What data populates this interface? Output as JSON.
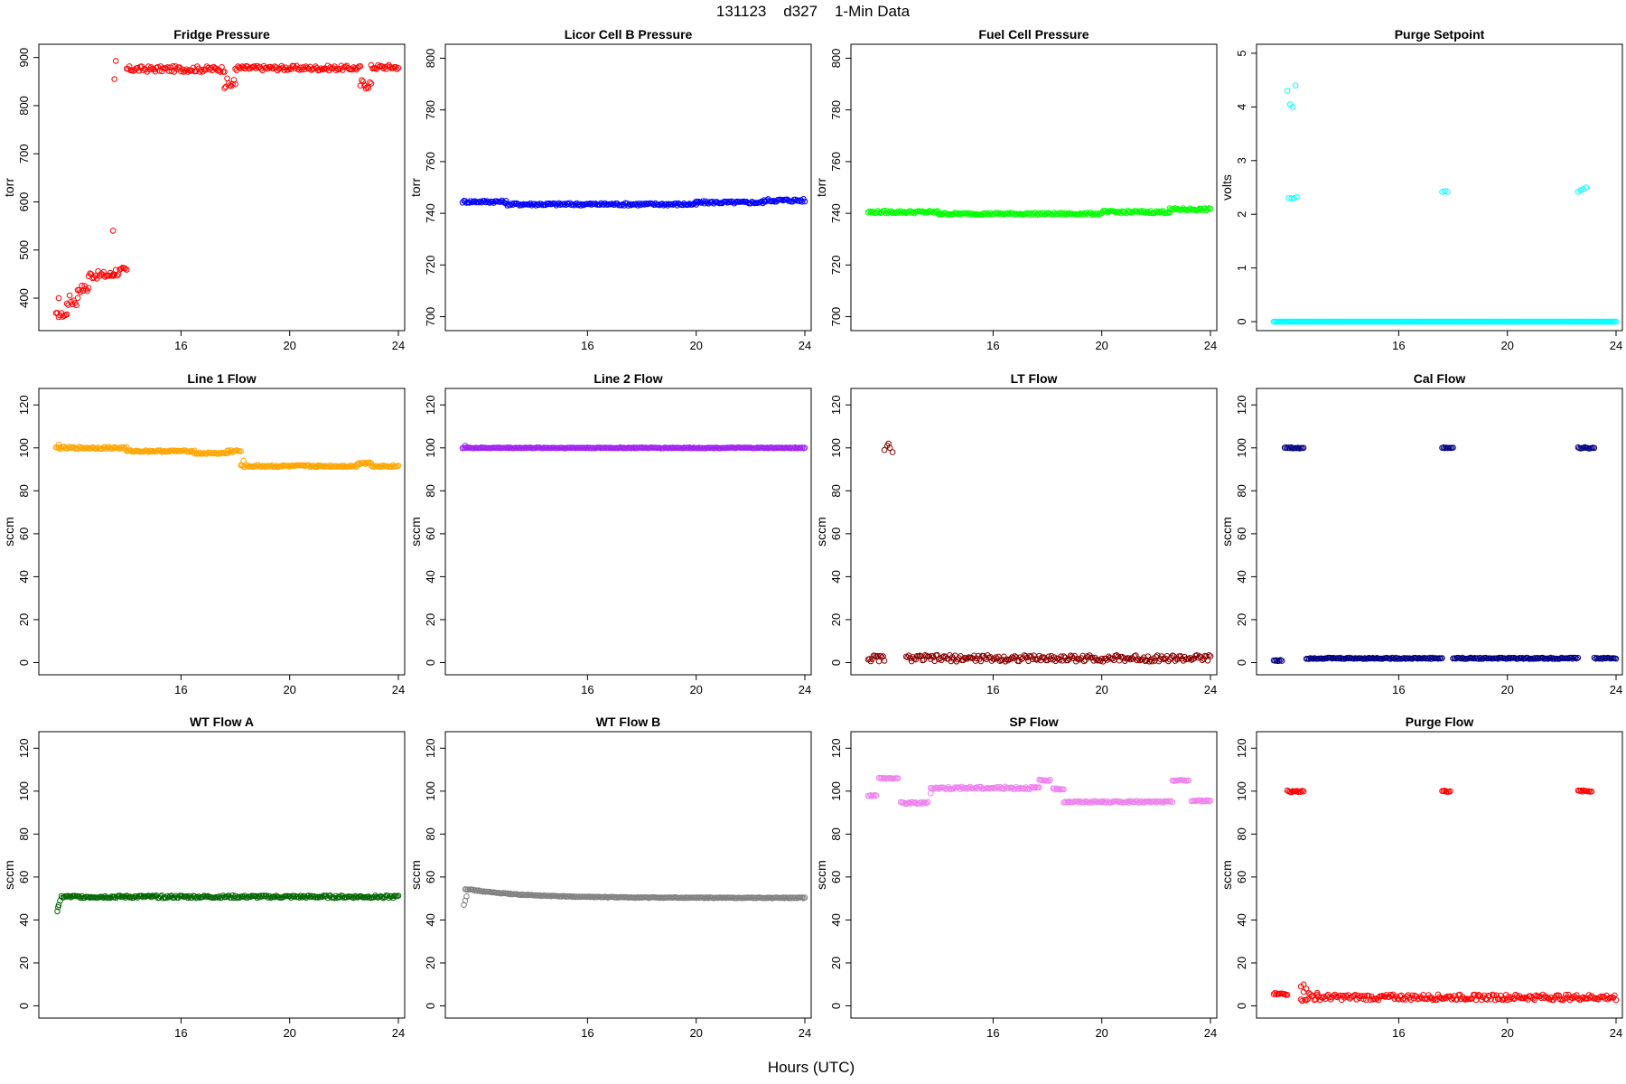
{
  "figure": {
    "title": "131123    d327    1-Min Data",
    "xlabel": "Hours (UTC)"
  },
  "chart_data": [
    {
      "type": "scatter",
      "title": "Fridge Pressure",
      "ylabel": "torr",
      "xlim": [
        11,
        24
      ],
      "ylim": [
        340,
        920
      ],
      "yticks": [
        400,
        500,
        600,
        700,
        800,
        900
      ],
      "xticks": [
        16,
        20,
        24
      ],
      "color": "#ff0000",
      "segments": [
        [
          11.4,
          11.8,
          365,
          5
        ],
        [
          11.8,
          12.2,
          395,
          12
        ],
        [
          12.2,
          12.6,
          420,
          8
        ],
        [
          12.6,
          13.5,
          448,
          8
        ],
        [
          13.5,
          14.0,
          455,
          10
        ],
        [
          14.0,
          17.6,
          876,
          6
        ],
        [
          17.6,
          18.0,
          845,
          12
        ],
        [
          18.0,
          22.6,
          878,
          5
        ],
        [
          22.6,
          23.0,
          845,
          10
        ],
        [
          23.0,
          24.0,
          880,
          5
        ]
      ],
      "points": [
        [
          11.5,
          400
        ],
        [
          13.5,
          540
        ],
        [
          13.6,
          893
        ],
        [
          13.55,
          855
        ]
      ]
    },
    {
      "type": "scatter",
      "title": "Licor Cell B Pressure",
      "ylabel": "torr",
      "xlim": [
        11,
        24
      ],
      "ylim": [
        696,
        804
      ],
      "yticks": [
        700,
        720,
        740,
        760,
        780,
        800
      ],
      "xticks": [
        16,
        20,
        24
      ],
      "color": "#0000ff",
      "segments": [
        [
          11.4,
          13.0,
          744.5,
          0.5
        ],
        [
          13.0,
          20.0,
          743.5,
          0.5
        ],
        [
          20.0,
          22.5,
          744.2,
          0.5
        ],
        [
          22.5,
          24.0,
          745.0,
          0.6
        ]
      ],
      "points": []
    },
    {
      "type": "scatter",
      "title": "Fuel Cell Pressure",
      "ylabel": "torr",
      "xlim": [
        11,
        24
      ],
      "ylim": [
        696,
        804
      ],
      "yticks": [
        700,
        720,
        740,
        760,
        780,
        800
      ],
      "xticks": [
        16,
        20,
        24
      ],
      "color": "#00ff00",
      "segments": [
        [
          11.4,
          14.0,
          740.5,
          0.5
        ],
        [
          14.0,
          20.0,
          739.8,
          0.4
        ],
        [
          20.0,
          22.5,
          740.5,
          0.5
        ],
        [
          22.5,
          24.0,
          741.5,
          0.5
        ]
      ],
      "points": []
    },
    {
      "type": "scatter",
      "title": "Purge Setpoint",
      "ylabel": "volts",
      "xlim": [
        11,
        24
      ],
      "ylim": [
        -0.1,
        5.1
      ],
      "yticks": [
        0,
        1,
        2,
        3,
        4,
        5
      ],
      "xticks": [
        16,
        20,
        24
      ],
      "color": "#00ffff",
      "segments": [
        [
          11.4,
          24.0,
          0,
          0
        ]
      ],
      "points": [
        [
          11.9,
          4.3
        ],
        [
          12.0,
          4.05
        ],
        [
          12.1,
          4.0
        ],
        [
          12.2,
          4.4
        ],
        [
          11.95,
          2.3
        ],
        [
          12.05,
          2.3
        ],
        [
          12.15,
          2.3
        ],
        [
          12.25,
          2.32
        ],
        [
          17.6,
          2.42
        ],
        [
          17.7,
          2.43
        ],
        [
          17.8,
          2.42
        ],
        [
          22.6,
          2.42
        ],
        [
          22.7,
          2.45
        ],
        [
          22.8,
          2.47
        ],
        [
          22.9,
          2.5
        ]
      ]
    },
    {
      "type": "scatter",
      "title": "Line 1 Flow",
      "ylabel": "sccm",
      "xlim": [
        11,
        24
      ],
      "ylim": [
        -4,
        126
      ],
      "yticks": [
        0,
        20,
        40,
        60,
        80,
        100,
        120
      ],
      "xticks": [
        16,
        20,
        24
      ],
      "color": "#ffa500",
      "segments": [
        [
          11.4,
          14.0,
          100,
          0.5
        ],
        [
          14.0,
          16.5,
          98.5,
          0.4
        ],
        [
          16.5,
          17.7,
          97.5,
          0.4
        ],
        [
          17.7,
          18.2,
          98.5,
          0.6
        ],
        [
          18.2,
          21.0,
          91.5,
          0.5
        ],
        [
          21.0,
          22.5,
          91.5,
          0.4
        ],
        [
          22.5,
          23.0,
          93,
          0.6
        ],
        [
          23.0,
          24.0,
          91.5,
          0.4
        ]
      ],
      "points": [
        [
          11.5,
          101.5
        ],
        [
          18.3,
          94
        ]
      ]
    },
    {
      "type": "scatter",
      "title": "Line 2 Flow",
      "ylabel": "sccm",
      "xlim": [
        11,
        24
      ],
      "ylim": [
        -4,
        126
      ],
      "yticks": [
        0,
        20,
        40,
        60,
        80,
        100,
        120
      ],
      "xticks": [
        16,
        20,
        24
      ],
      "color": "#a020f0",
      "segments": [
        [
          11.4,
          24.0,
          100,
          0.2
        ]
      ],
      "points": [
        [
          11.5,
          101
        ]
      ]
    },
    {
      "type": "scatter",
      "title": "LT Flow",
      "ylabel": "sccm",
      "xlim": [
        11,
        24
      ],
      "ylim": [
        -4,
        126
      ],
      "yticks": [
        0,
        20,
        40,
        60,
        80,
        100,
        120
      ],
      "xticks": [
        16,
        20,
        24
      ],
      "color": "#8b0000",
      "segments": [
        [
          11.4,
          12.0,
          2,
          1.5
        ],
        [
          12.8,
          24.0,
          2,
          1.5
        ]
      ],
      "points": [
        [
          12.0,
          99
        ],
        [
          12.1,
          101
        ],
        [
          12.2,
          100
        ],
        [
          12.3,
          98
        ],
        [
          12.15,
          102
        ]
      ]
    },
    {
      "type": "scatter",
      "title": "Cal Flow",
      "ylabel": "sccm",
      "xlim": [
        11,
        24
      ],
      "ylim": [
        -4,
        126
      ],
      "yticks": [
        0,
        20,
        40,
        60,
        80,
        100,
        120
      ],
      "xticks": [
        16,
        20,
        24
      ],
      "color": "#000080",
      "segments": [
        [
          11.4,
          11.7,
          1,
          0.3
        ],
        [
          11.8,
          12.5,
          100,
          0.3
        ],
        [
          12.6,
          17.6,
          2,
          0.3
        ],
        [
          17.6,
          18.0,
          100,
          0.3
        ],
        [
          18.0,
          22.6,
          2,
          0.3
        ],
        [
          22.6,
          23.2,
          100,
          0.3
        ],
        [
          23.2,
          24.0,
          2,
          0.3
        ]
      ],
      "points": []
    },
    {
      "type": "scatter",
      "title": "WT Flow A",
      "ylabel": "sccm",
      "xlim": [
        11,
        24
      ],
      "ylim": [
        -4,
        126
      ],
      "yticks": [
        0,
        20,
        40,
        60,
        80,
        100,
        120
      ],
      "xticks": [
        16,
        20,
        24
      ],
      "color": "#006400",
      "segments": [
        [
          11.6,
          24.0,
          50.8,
          0.6
        ]
      ],
      "points": [
        [
          11.45,
          44
        ],
        [
          11.48,
          46
        ],
        [
          11.5,
          47
        ],
        [
          11.55,
          49
        ]
      ]
    },
    {
      "type": "scatter",
      "title": "WT Flow B",
      "ylabel": "sccm",
      "xlim": [
        11,
        24
      ],
      "ylim": [
        -4,
        126
      ],
      "yticks": [
        0,
        20,
        40,
        60,
        80,
        100,
        120
      ],
      "xticks": [
        16,
        20,
        24
      ],
      "color": "#808080",
      "decay": [
        11.5,
        54.5,
        50.3,
        2.0,
        24.0
      ],
      "points": [
        [
          11.45,
          47
        ],
        [
          11.5,
          49
        ],
        [
          11.55,
          51
        ]
      ],
      "segments": []
    },
    {
      "type": "scatter",
      "title": "SP Flow",
      "ylabel": "sccm",
      "xlim": [
        11,
        24
      ],
      "ylim": [
        -4,
        126
      ],
      "yticks": [
        0,
        20,
        40,
        60,
        80,
        100,
        120
      ],
      "xticks": [
        16,
        20,
        24
      ],
      "color": "#ee82ee",
      "segments": [
        [
          11.4,
          11.7,
          98,
          0.3
        ],
        [
          11.8,
          12.5,
          106,
          0.3
        ],
        [
          12.6,
          13.6,
          94.5,
          0.5
        ],
        [
          13.7,
          17.7,
          101.5,
          0.6
        ],
        [
          17.7,
          18.1,
          105,
          0.3
        ],
        [
          18.2,
          18.6,
          101,
          0.3
        ],
        [
          18.6,
          20.0,
          95,
          0.4
        ],
        [
          20.0,
          22.6,
          95,
          0.4
        ],
        [
          22.6,
          23.2,
          105,
          0.3
        ],
        [
          23.3,
          24.0,
          95.5,
          0.3
        ]
      ],
      "points": [
        [
          13.7,
          99
        ]
      ]
    },
    {
      "type": "scatter",
      "title": "Purge Flow",
      "ylabel": "sccm",
      "xlim": [
        11,
        24
      ],
      "ylim": [
        -4,
        126
      ],
      "yticks": [
        0,
        20,
        40,
        60,
        80,
        100,
        120
      ],
      "xticks": [
        16,
        20,
        24
      ],
      "color": "#ff0000",
      "segments": [
        [
          11.4,
          11.9,
          5.5,
          0.5
        ],
        [
          12.4,
          13.0,
          4.5,
          2.5
        ],
        [
          13.0,
          24.0,
          4,
          1.3
        ],
        [
          11.9,
          12.5,
          100,
          0.5
        ],
        [
          17.6,
          17.9,
          100,
          0.4
        ],
        [
          22.6,
          23.1,
          100,
          0.4
        ]
      ],
      "points": [
        [
          12.4,
          9
        ],
        [
          12.5,
          10
        ],
        [
          12.6,
          8
        ]
      ]
    }
  ]
}
